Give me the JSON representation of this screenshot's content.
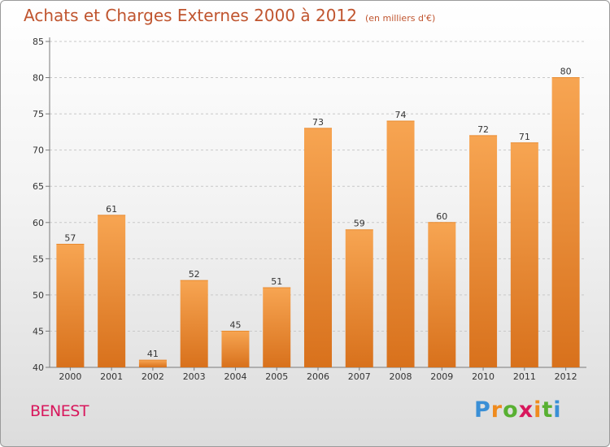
{
  "title": "Achats et Charges Externes 2000 à 2012",
  "unit_note": "(en milliers d'€)",
  "commune": "BENEST",
  "logo": {
    "text": "Proxiti",
    "letters": [
      "P",
      "r",
      "o",
      "x",
      "i",
      "t",
      "i"
    ],
    "colors": [
      "#3a8fd6",
      "#ef8b1e",
      "#58b032",
      "#d8175c",
      "#ef8b1e",
      "#58b032",
      "#3a8fd6"
    ]
  },
  "colors": {
    "title": "#c0552f",
    "commune": "#d8175c",
    "bar_top": "#f7a552",
    "bar_bottom": "#d8711c",
    "grid": "#c8c8c8",
    "axis": "#7a7a7a"
  },
  "chart_data": {
    "type": "bar",
    "title": "Achats et Charges Externes 2000 à 2012",
    "subtitle": "(en milliers d'€)",
    "xlabel": "",
    "ylabel": "",
    "categories": [
      "2000",
      "2001",
      "2002",
      "2003",
      "2004",
      "2005",
      "2006",
      "2007",
      "2008",
      "2009",
      "2010",
      "2011",
      "2012"
    ],
    "values": [
      57,
      61,
      41,
      52,
      45,
      51,
      73,
      59,
      74,
      60,
      72,
      71,
      80
    ],
    "ylim": [
      40,
      85
    ],
    "yticks": [
      40,
      45,
      50,
      55,
      60,
      65,
      70,
      75,
      80,
      85
    ],
    "grid": "horizontal dashed",
    "legend": "none"
  }
}
